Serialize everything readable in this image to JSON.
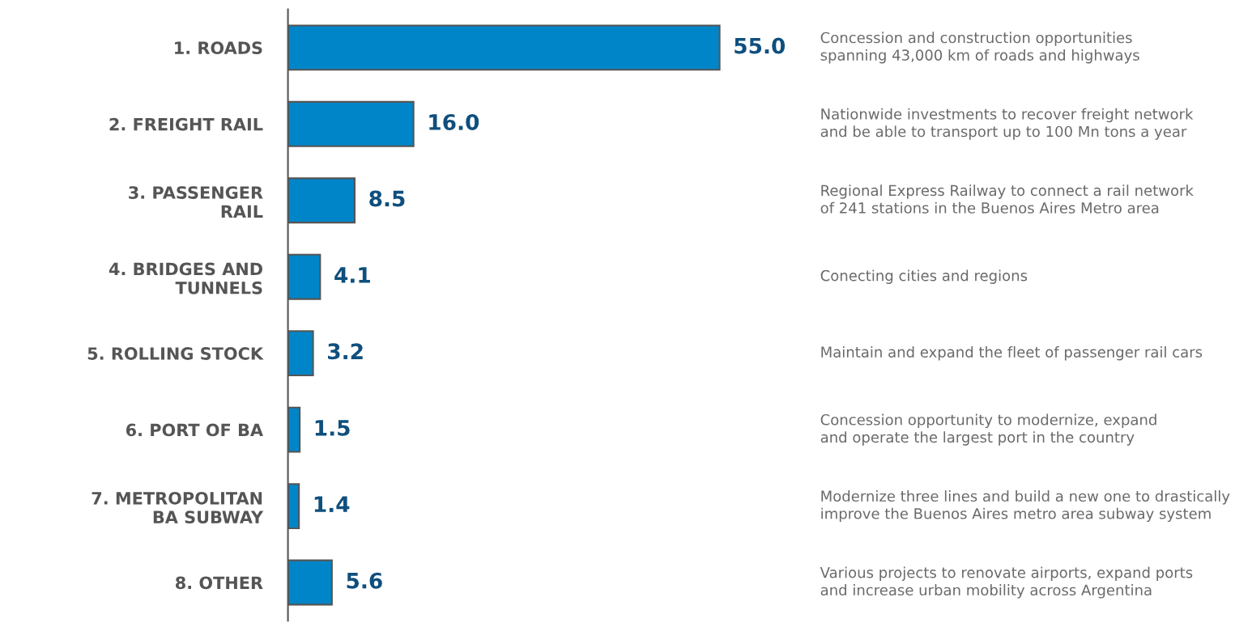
{
  "chart_data": {
    "type": "bar",
    "orientation": "horizontal",
    "categories": [
      "1. ROADS",
      "2. FREIGHT RAIL",
      "3. PASSENGER\nRAIL",
      "4. BRIDGES AND\nTUNNELS",
      "5. ROLLING STOCK",
      "6. PORT OF BA",
      "7. METROPOLITAN\nBA SUBWAY",
      "8. OTHER"
    ],
    "values": [
      55.0,
      16.0,
      8.5,
      4.1,
      3.2,
      1.5,
      1.4,
      5.6
    ],
    "color": "#0085c8",
    "value_labels": [
      "55.0",
      "16.0",
      "8.5",
      "4.1",
      "3.2",
      "1.5",
      "1.4",
      "5.6"
    ],
    "tick_labels": "y",
    "grid": false,
    "legend": false,
    "annotations": [
      "Concession and construction opportunities\nspanning 43,000 km of roads and highways",
      "Nationwide investments to recover freight network\nand be able to transport up to 100 Mn tons a year",
      "Regional Express Railway to connect a rail network\nof 241 stations in the Buenos Aires Metro area",
      "Conecting cities and regions",
      "Maintain and expand the fleet of passenger rail cars",
      "Concession opportunity to modernize, expand\nand operate the largest port in the country",
      "Modernize three lines and build a new one to drastically\nimprove the Buenos Aires metro area subway system",
      "Various projects to renovate airports, expand ports\nand increase urban mobility across Argentina"
    ]
  }
}
